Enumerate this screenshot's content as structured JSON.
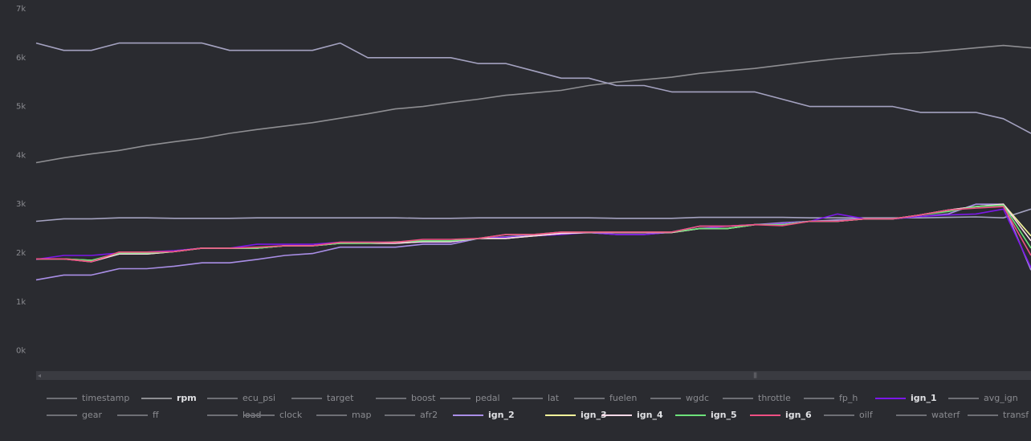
{
  "chart_data": {
    "type": "line",
    "y_ticks": [
      "7k",
      "6k",
      "5k",
      "4k",
      "3k",
      "2k",
      "1k",
      "0k"
    ],
    "ylim": [
      -500,
      7000
    ],
    "x_count": 37,
    "series": [
      {
        "name": "rpm",
        "color": "#8e8e92",
        "values": [
          3850,
          3950,
          4030,
          4100,
          4200,
          4280,
          4350,
          4450,
          4530,
          4600,
          4670,
          4760,
          4850,
          4950,
          5000,
          5080,
          5150,
          5230,
          5280,
          5330,
          5430,
          5500,
          5550,
          5600,
          5680,
          5730,
          5780,
          5850,
          5920,
          5980,
          6030,
          6080,
          6100,
          6150,
          6200,
          6250,
          6200
        ]
      },
      {
        "name": "ecu_psi",
        "color": "#a4a2c0",
        "values": [
          6300,
          6150,
          6150,
          6300,
          6300,
          6300,
          6300,
          6150,
          6150,
          6150,
          6150,
          6300,
          6000,
          6000,
          6000,
          6000,
          5880,
          5880,
          5730,
          5580,
          5580,
          5430,
          5430,
          5300,
          5300,
          5300,
          5300,
          5150,
          5000,
          5000,
          5000,
          5000,
          4880,
          4880,
          4880,
          4750,
          4450
        ]
      },
      {
        "name": "avg_ign",
        "color": "#a4a2c0",
        "values": [
          2650,
          2700,
          2700,
          2720,
          2720,
          2710,
          2710,
          2710,
          2720,
          2720,
          2720,
          2720,
          2720,
          2720,
          2710,
          2710,
          2720,
          2720,
          2720,
          2720,
          2720,
          2710,
          2710,
          2710,
          2730,
          2730,
          2730,
          2730,
          2720,
          2720,
          2720,
          2720,
          2720,
          2730,
          2740,
          2720,
          2900
        ]
      },
      {
        "name": "ign_2",
        "color": "#a98ee6",
        "values": [
          1450,
          1550,
          1550,
          1680,
          1680,
          1730,
          1800,
          1800,
          1870,
          1950,
          1990,
          2120,
          2120,
          2120,
          2180,
          2180,
          2300,
          2330,
          2370,
          2420,
          2420,
          2380,
          2380,
          2430,
          2550,
          2550,
          2580,
          2620,
          2650,
          2680,
          2700,
          2700,
          2750,
          2800,
          3000,
          3000,
          1650
        ]
      },
      {
        "name": "ign_1",
        "color": "#7b17e8",
        "values": [
          1870,
          1950,
          1950,
          2000,
          2020,
          2050,
          2100,
          2100,
          2180,
          2180,
          2180,
          2220,
          2220,
          2220,
          2220,
          2220,
          2300,
          2320,
          2350,
          2380,
          2420,
          2380,
          2380,
          2430,
          2500,
          2550,
          2580,
          2600,
          2650,
          2800,
          2700,
          2700,
          2750,
          2780,
          2800,
          2900,
          1700
        ]
      },
      {
        "name": "ign_3",
        "color": "#f4f59a",
        "values": [
          1880,
          1880,
          1850,
          1980,
          1980,
          2030,
          2100,
          2100,
          2100,
          2150,
          2150,
          2200,
          2200,
          2200,
          2230,
          2230,
          2300,
          2300,
          2350,
          2400,
          2420,
          2420,
          2420,
          2420,
          2500,
          2500,
          2580,
          2580,
          2650,
          2650,
          2700,
          2700,
          2780,
          2880,
          2950,
          3000,
          2350
        ]
      },
      {
        "name": "ign_4",
        "color": "#f8d8e6",
        "values": [
          1880,
          1880,
          1820,
          1980,
          1980,
          2030,
          2100,
          2100,
          2100,
          2150,
          2150,
          2200,
          2200,
          2200,
          2230,
          2230,
          2300,
          2300,
          2350,
          2400,
          2420,
          2420,
          2420,
          2420,
          2500,
          2500,
          2580,
          2580,
          2650,
          2650,
          2700,
          2700,
          2780,
          2880,
          2950,
          3000,
          2250
        ]
      },
      {
        "name": "ign_5",
        "color": "#6de27a",
        "values": [
          1880,
          1880,
          1850,
          2000,
          2000,
          2030,
          2100,
          2100,
          2100,
          2150,
          2150,
          2200,
          2200,
          2230,
          2250,
          2250,
          2300,
          2380,
          2380,
          2430,
          2430,
          2430,
          2430,
          2430,
          2500,
          2500,
          2580,
          2580,
          2650,
          2650,
          2700,
          2700,
          2780,
          2850,
          2950,
          2980,
          2100
        ]
      },
      {
        "name": "ign_6",
        "color": "#ef4f83",
        "values": [
          1880,
          1880,
          1820,
          2020,
          2020,
          2030,
          2100,
          2100,
          2120,
          2150,
          2150,
          2220,
          2220,
          2220,
          2280,
          2280,
          2300,
          2380,
          2380,
          2430,
          2430,
          2430,
          2430,
          2430,
          2550,
          2550,
          2580,
          2560,
          2650,
          2650,
          2700,
          2700,
          2780,
          2880,
          2920,
          2950,
          1950
        ]
      }
    ]
  },
  "legend": {
    "row1": [
      {
        "label": "timestamp",
        "color": "#6e6f75",
        "active": false
      },
      {
        "label": "rpm",
        "color": "#8e8e92",
        "active": true
      },
      {
        "label": "ecu_psi",
        "color": "#6e6f75",
        "active": false
      },
      {
        "label": "target",
        "color": "#6e6f75",
        "active": false
      },
      {
        "label": "boost",
        "color": "#6e6f75",
        "active": false
      },
      {
        "label": "pedal",
        "color": "#6e6f75",
        "active": false
      },
      {
        "label": "lat",
        "color": "#6e6f75",
        "active": false
      },
      {
        "label": "fuelen",
        "color": "#6e6f75",
        "active": false
      },
      {
        "label": "wgdc",
        "color": "#6e6f75",
        "active": false
      },
      {
        "label": "throttle",
        "color": "#6e6f75",
        "active": false
      },
      {
        "label": "fp_h",
        "color": "#6e6f75",
        "active": false
      },
      {
        "label": "ign_1",
        "color": "#7b17e8",
        "active": true
      },
      {
        "label": "avg_ign",
        "color": "#6e6f75",
        "active": false
      }
    ],
    "row2": [
      {
        "label": "gear",
        "color": "#6e6f75",
        "active": false
      },
      {
        "label": "ff",
        "color": "#6e6f75",
        "active": false
      },
      {
        "label": "load",
        "color": "#6e6f75",
        "active": false
      },
      {
        "label": "clock",
        "color": "#6e6f75",
        "active": false
      },
      {
        "label": "map",
        "color": "#6e6f75",
        "active": false
      },
      {
        "label": "afr2",
        "color": "#6e6f75",
        "active": false
      },
      {
        "label": "ign_2",
        "color": "#a98ee6",
        "active": true
      },
      {
        "label": "ign_3",
        "color": "#f4f59a",
        "active": true
      },
      {
        "label": "ign_4",
        "color": "#f8d8e6",
        "active": true
      },
      {
        "label": "ign_5",
        "color": "#6de27a",
        "active": true
      },
      {
        "label": "ign_6",
        "color": "#ef4f83",
        "active": true
      },
      {
        "label": "oilf",
        "color": "#6e6f75",
        "active": false
      },
      {
        "label": "waterf",
        "color": "#6e6f75",
        "active": false
      },
      {
        "label": "transf",
        "color": "#6e6f75",
        "active": false
      }
    ]
  },
  "scrollbar": {
    "left_arrow": "◂",
    "grip": "|||"
  }
}
